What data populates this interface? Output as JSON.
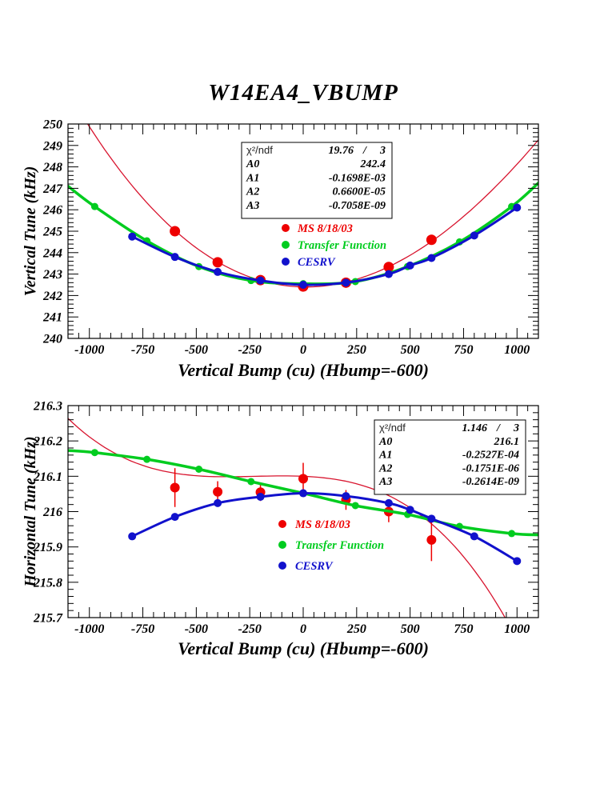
{
  "title": "W14EA4_VBUMP",
  "chart_data": [
    {
      "type": "scatter",
      "xlabel": "Vertical Bump (cu) (Hbump=-600)",
      "ylabel": "Vertical Tune (kHz)",
      "xlim": [
        -1100,
        1100
      ],
      "ylim": [
        240,
        250
      ],
      "grid": false,
      "x_ticks": {
        "values": [
          -1000,
          -750,
          -500,
          -250,
          0,
          250,
          500,
          750,
          1000
        ],
        "labels": [
          "-1000",
          "-750",
          "-500",
          "-250",
          "0",
          "250",
          "500",
          "750",
          "1000"
        ],
        "minor_step": 50
      },
      "y_ticks": {
        "values": [
          240,
          241,
          242,
          243,
          244,
          245,
          246,
          247,
          248,
          249,
          250
        ],
        "labels": [
          "240",
          "241",
          "242",
          "243",
          "244",
          "245",
          "246",
          "247",
          "248",
          "249",
          "250"
        ],
        "minor_step": 0.2
      },
      "stats": {
        "chi2_label": "χ²/ndf",
        "chi2_value": "19.76",
        "chi2_ndf": "3",
        "params": [
          {
            "name": "A0",
            "value": "242.4"
          },
          {
            "name": "A1",
            "value": "-0.1698E-03"
          },
          {
            "name": "A2",
            "value": "0.6600E-05"
          },
          {
            "name": "A3",
            "value": "-0.7058E-09"
          }
        ]
      },
      "legend": [
        {
          "label": "MS 8/18/03",
          "color": "#ee0000"
        },
        {
          "label": "Transfer Function",
          "color": "#00cc1f"
        },
        {
          "label": "CESRV",
          "color": "#1111cc"
        }
      ],
      "series": [
        {
          "name": "MS 8/18/03",
          "color": "#ee0000",
          "marker_r": 6.5,
          "points": [
            [
              -600,
              245.0
            ],
            [
              -400,
              243.55
            ],
            [
              -200,
              242.72
            ],
            [
              0,
              242.42
            ],
            [
              200,
              242.6
            ],
            [
              400,
              243.33
            ],
            [
              600,
              244.6
            ]
          ],
          "fit_poly": [
            242.4,
            -0.0001698,
            6.6e-06,
            -7.058e-10
          ],
          "fit_color": "#d8142e",
          "fit_width": 1.3
        },
        {
          "name": "Transfer Function",
          "color": "#00cc1f",
          "marker_r": 4.5,
          "line_width": 3.5,
          "points": [
            [
              -975,
              246.15
            ],
            [
              -731,
              244.55
            ],
            [
              -488,
              243.35
            ],
            [
              -244,
              242.7
            ],
            [
              0,
              242.55
            ],
            [
              244,
              242.65
            ],
            [
              488,
              243.35
            ],
            [
              731,
              244.5
            ],
            [
              975,
              246.15
            ]
          ],
          "curve_ext": [
            [
              -1100,
              247.1
            ],
            [
              1100,
              247.25
            ]
          ]
        },
        {
          "name": "CESRV",
          "color": "#1111cc",
          "marker_r": 5,
          "line_width": 3,
          "points": [
            [
              -800,
              244.75
            ],
            [
              -600,
              243.8
            ],
            [
              -400,
              243.1
            ],
            [
              -200,
              242.7
            ],
            [
              0,
              242.5
            ],
            [
              200,
              242.6
            ],
            [
              400,
              243.0
            ],
            [
              500,
              243.4
            ],
            [
              600,
              243.75
            ],
            [
              800,
              244.8
            ],
            [
              1000,
              246.1
            ]
          ]
        }
      ]
    },
    {
      "type": "scatter",
      "xlabel": "Vertical Bump (cu) (Hbump=-600)",
      "ylabel": "Horizontal Tune (kHz)",
      "xlim": [
        -1100,
        1100
      ],
      "ylim": [
        215.7,
        216.3
      ],
      "grid": false,
      "x_ticks": {
        "values": [
          -1000,
          -750,
          -500,
          -250,
          0,
          250,
          500,
          750,
          1000
        ],
        "labels": [
          "-1000",
          "-750",
          "-500",
          "-250",
          "0",
          "250",
          "500",
          "750",
          "1000"
        ],
        "minor_step": 50
      },
      "y_ticks": {
        "values": [
          215.7,
          215.8,
          215.9,
          216,
          216.1,
          216.2,
          216.3
        ],
        "labels": [
          "215.7",
          "215.8",
          "215.9",
          "216",
          "216.1",
          "216.2",
          "216.3"
        ],
        "minor_step": 0.02
      },
      "stats": {
        "chi2_label": "χ²/ndf",
        "chi2_value": "1.146",
        "chi2_ndf": "3",
        "params": [
          {
            "name": "A0",
            "value": "216.1"
          },
          {
            "name": "A1",
            "value": "-0.2527E-04"
          },
          {
            "name": "A2",
            "value": "-0.1751E-06"
          },
          {
            "name": "A3",
            "value": "-0.2614E-09"
          }
        ]
      },
      "legend": [
        {
          "label": "MS 8/18/03",
          "color": "#ee0000"
        },
        {
          "label": "Transfer Function",
          "color": "#00cc1f"
        },
        {
          "label": "CESRV",
          "color": "#1111cc"
        }
      ],
      "series": [
        {
          "name": "MS 8/18/03",
          "color": "#ee0000",
          "marker_r": 6,
          "error_bars": true,
          "points": [
            [
              -600,
              216.068,
              0.055
            ],
            [
              -400,
              216.056,
              0.03
            ],
            [
              -200,
              216.055,
              0.025
            ],
            [
              0,
              216.093,
              0.045
            ],
            [
              200,
              216.033,
              0.028
            ],
            [
              400,
              216.0,
              0.03
            ],
            [
              600,
              215.92,
              0.06
            ]
          ],
          "fit_poly": [
            216.1,
            -2.527e-05,
            -1.751e-07,
            -2.614e-10
          ],
          "fit_color": "#d8142e",
          "fit_width": 1.3
        },
        {
          "name": "Transfer Function",
          "color": "#00cc1f",
          "marker_r": 4.5,
          "line_width": 3.5,
          "points": [
            [
              -975,
              216.167
            ],
            [
              -731,
              216.148
            ],
            [
              -488,
              216.12
            ],
            [
              -244,
              216.085
            ],
            [
              0,
              216.052
            ],
            [
              244,
              216.017
            ],
            [
              488,
              215.992
            ],
            [
              731,
              215.958
            ],
            [
              975,
              215.938
            ]
          ],
          "curve_ext": [
            [
              -1100,
              216.173
            ],
            [
              1100,
              215.934
            ]
          ]
        },
        {
          "name": "CESRV",
          "color": "#1111cc",
          "marker_r": 5,
          "line_width": 3,
          "points": [
            [
              -800,
              215.93
            ],
            [
              -600,
              215.985
            ],
            [
              -400,
              216.024
            ],
            [
              -200,
              216.042
            ],
            [
              0,
              216.052
            ],
            [
              200,
              216.044
            ],
            [
              400,
              216.024
            ],
            [
              500,
              216.005
            ],
            [
              600,
              215.98
            ],
            [
              800,
              215.93
            ],
            [
              1000,
              215.86
            ]
          ]
        }
      ]
    }
  ]
}
